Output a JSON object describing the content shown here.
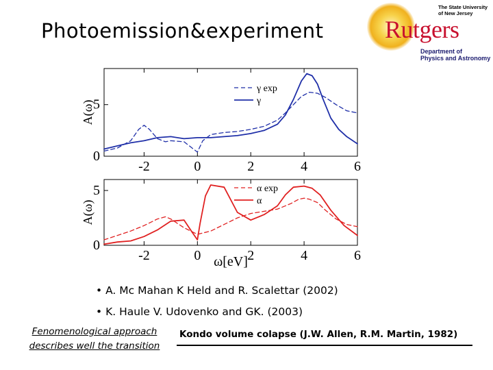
{
  "title": "Photoemission&experiment",
  "logo": {
    "brand": "Rutgers",
    "university": "The State University of New Jersey",
    "department": "Department of Physics and Astronomy"
  },
  "references": [
    "• A. Mc Mahan K Held and R. Scalettar (2002)",
    "• K. Haule V. Udovenko and GK. (2003)"
  ],
  "phenomenological": {
    "line1": "Fenomenological approach",
    "line2": "describes well the transition"
  },
  "kondo": "Kondo volume colapse (J.W. Allen, R.M. Martin, 1982)",
  "colors": {
    "gamma": "#1f2fa8",
    "alpha": "#e02020",
    "logo": "#c8102e"
  },
  "chart_data": [
    {
      "type": "line",
      "panel": "top",
      "ylabel": "A(ω)",
      "xlim": [
        -3.5,
        6
      ],
      "ylim": [
        0,
        8.5
      ],
      "xticks": [
        "-2",
        "0",
        "2",
        "4",
        "6"
      ],
      "xtick_values": [
        -2,
        0,
        2,
        4,
        6
      ],
      "yticks": [
        "0",
        "5"
      ],
      "ytick_values": [
        0,
        5
      ],
      "legend": "top-right",
      "series": [
        {
          "name": "γ exp",
          "style": "dashed",
          "x": [
            -3.5,
            -3.0,
            -2.5,
            -2.2,
            -2.0,
            -1.8,
            -1.5,
            -1.2,
            -1.0,
            -0.5,
            -0.2,
            0.0,
            0.2,
            0.5,
            1.0,
            1.5,
            2.0,
            2.5,
            3.0,
            3.3,
            3.6,
            3.9,
            4.2,
            4.5,
            4.8,
            5.2,
            5.6,
            6.0
          ],
          "values": [
            0.5,
            0.8,
            1.5,
            2.6,
            3.0,
            2.6,
            1.7,
            1.4,
            1.5,
            1.4,
            0.8,
            0.4,
            1.5,
            2.1,
            2.3,
            2.4,
            2.6,
            2.9,
            3.5,
            4.2,
            5.0,
            5.8,
            6.2,
            6.1,
            5.7,
            5.0,
            4.4,
            4.2
          ]
        },
        {
          "name": "γ",
          "style": "solid",
          "x": [
            -3.5,
            -3.0,
            -2.5,
            -2.0,
            -1.5,
            -1.0,
            -0.5,
            0.0,
            0.5,
            1.0,
            1.5,
            2.0,
            2.5,
            3.0,
            3.3,
            3.6,
            3.9,
            4.1,
            4.3,
            4.5,
            4.7,
            5.0,
            5.3,
            5.6,
            6.0
          ],
          "values": [
            0.7,
            1.0,
            1.3,
            1.5,
            1.8,
            1.9,
            1.7,
            1.8,
            1.8,
            1.9,
            2.0,
            2.2,
            2.5,
            3.1,
            4.0,
            5.5,
            7.3,
            8.0,
            7.8,
            7.0,
            5.6,
            3.7,
            2.6,
            1.9,
            1.2
          ]
        }
      ]
    },
    {
      "type": "line",
      "panel": "bottom",
      "ylabel": "A(ω)",
      "xlabel": "ω[eV]",
      "xlim": [
        -3.5,
        6
      ],
      "ylim": [
        0,
        6
      ],
      "xticks": [
        "-2",
        "0",
        "2",
        "4",
        "6"
      ],
      "xtick_values": [
        -2,
        0,
        2,
        4,
        6
      ],
      "yticks": [
        "0",
        "5"
      ],
      "ytick_values": [
        0,
        5
      ],
      "legend": "top-right",
      "series": [
        {
          "name": "α exp",
          "style": "dashed",
          "x": [
            -3.5,
            -3.0,
            -2.5,
            -2.0,
            -1.5,
            -1.2,
            -1.0,
            -0.5,
            0.0,
            0.5,
            1.0,
            1.5,
            2.0,
            2.5,
            3.0,
            3.5,
            3.8,
            4.0,
            4.2,
            4.5,
            4.8,
            5.2,
            5.6,
            6.0
          ],
          "values": [
            0.5,
            0.9,
            1.3,
            1.8,
            2.4,
            2.6,
            2.4,
            1.6,
            1.0,
            1.3,
            1.9,
            2.5,
            2.9,
            3.1,
            3.3,
            3.8,
            4.2,
            4.3,
            4.2,
            3.9,
            3.2,
            2.4,
            1.9,
            1.7
          ]
        },
        {
          "name": "α",
          "style": "solid",
          "x": [
            -3.5,
            -3.0,
            -2.5,
            -2.0,
            -1.5,
            -1.0,
            -0.5,
            -0.2,
            0.0,
            0.1,
            0.3,
            0.5,
            1.0,
            1.5,
            2.0,
            2.5,
            3.0,
            3.3,
            3.6,
            4.0,
            4.3,
            4.6,
            5.0,
            5.5,
            6.0
          ],
          "values": [
            0.1,
            0.3,
            0.4,
            0.8,
            1.4,
            2.2,
            2.3,
            1.2,
            0.5,
            2.0,
            4.5,
            5.5,
            5.3,
            3.0,
            2.3,
            2.8,
            3.6,
            4.6,
            5.3,
            5.4,
            5.2,
            4.6,
            3.2,
            1.8,
            0.9
          ]
        }
      ]
    }
  ],
  "xaxis_label": "ω[eV]"
}
